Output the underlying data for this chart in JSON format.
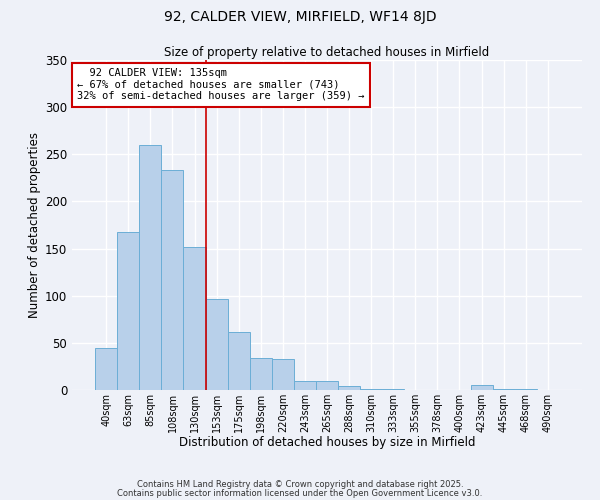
{
  "title": "92, CALDER VIEW, MIRFIELD, WF14 8JD",
  "subtitle": "Size of property relative to detached houses in Mirfield",
  "xlabel": "Distribution of detached houses by size in Mirfield",
  "ylabel": "Number of detached properties",
  "bar_labels": [
    "40sqm",
    "63sqm",
    "85sqm",
    "108sqm",
    "130sqm",
    "153sqm",
    "175sqm",
    "198sqm",
    "220sqm",
    "243sqm",
    "265sqm",
    "288sqm",
    "310sqm",
    "333sqm",
    "355sqm",
    "378sqm",
    "400sqm",
    "423sqm",
    "445sqm",
    "468sqm",
    "490sqm"
  ],
  "bar_values": [
    45,
    168,
    260,
    233,
    152,
    97,
    62,
    34,
    33,
    10,
    10,
    4,
    1,
    1,
    0,
    0,
    0,
    5,
    1,
    1,
    0
  ],
  "bar_color": "#b8d0ea",
  "bar_edge_color": "#6baed6",
  "vline_x": 4.5,
  "vline_color": "#cc0000",
  "ylim": [
    0,
    350
  ],
  "yticks": [
    0,
    50,
    100,
    150,
    200,
    250,
    300,
    350
  ],
  "annotation_title": "92 CALDER VIEW: 135sqm",
  "annotation_line1": "← 67% of detached houses are smaller (743)",
  "annotation_line2": "32% of semi-detached houses are larger (359) →",
  "annotation_box_facecolor": "#ffffff",
  "annotation_box_edgecolor": "#cc0000",
  "footer1": "Contains HM Land Registry data © Crown copyright and database right 2025.",
  "footer2": "Contains public sector information licensed under the Open Government Licence v3.0.",
  "background_color": "#eef1f8",
  "figsize": [
    6.0,
    5.0
  ],
  "dpi": 100
}
